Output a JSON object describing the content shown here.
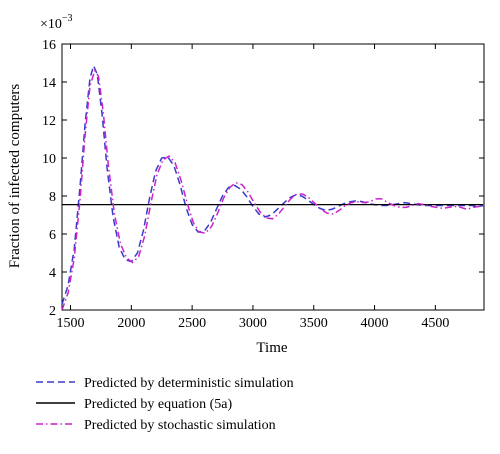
{
  "chart_data": {
    "type": "line",
    "xlabel": "Time",
    "ylabel": "Fraction of infected computers",
    "y_multiplier": "×10",
    "y_multiplier_exp": "−3",
    "xlim": [
      1430,
      4900
    ],
    "ylim": [
      2,
      16
    ],
    "x_ticks": [
      1500,
      2000,
      2500,
      3000,
      3500,
      4000,
      4500
    ],
    "y_ticks": [
      2,
      4,
      6,
      8,
      10,
      12,
      14,
      16
    ],
    "grid": false,
    "legend_position": "bottom",
    "series": [
      {
        "name": "Predicted by deterministic simulation",
        "color": "#3a3acc",
        "style": "dashed",
        "x": [
          1430,
          1480,
          1530,
          1580,
          1620,
          1660,
          1690,
          1720,
          1760,
          1800,
          1850,
          1900,
          1950,
          2000,
          2050,
          2100,
          2150,
          2200,
          2250,
          2300,
          2350,
          2400,
          2450,
          2500,
          2550,
          2600,
          2650,
          2700,
          2750,
          2800,
          2850,
          2900,
          2950,
          3000,
          3050,
          3100,
          3150,
          3200,
          3250,
          3300,
          3350,
          3400,
          3450,
          3500,
          3550,
          3600,
          3650,
          3700,
          3750,
          3800,
          3850,
          3900,
          3950,
          4000,
          4050,
          4100,
          4150,
          4200,
          4250,
          4300,
          4350,
          4400,
          4450,
          4500,
          4550,
          4600,
          4650,
          4700,
          4750,
          4800,
          4850,
          4900
        ],
        "y": [
          2.3,
          3.3,
          5.2,
          8.6,
          11.8,
          14.2,
          14.85,
          14.4,
          12.3,
          9.5,
          6.9,
          5.3,
          4.65,
          4.55,
          5.0,
          6.2,
          7.9,
          9.3,
          10.0,
          10.05,
          9.6,
          8.6,
          7.4,
          6.5,
          6.1,
          6.15,
          6.6,
          7.3,
          8.0,
          8.45,
          8.55,
          8.35,
          7.95,
          7.45,
          7.05,
          6.9,
          7.0,
          7.3,
          7.6,
          7.9,
          8.05,
          8.0,
          7.8,
          7.55,
          7.35,
          7.25,
          7.3,
          7.45,
          7.6,
          7.7,
          7.75,
          7.7,
          7.6,
          7.55,
          7.5,
          7.5,
          7.55,
          7.6,
          7.65,
          7.6,
          7.55,
          7.5,
          7.5,
          7.5,
          7.5,
          7.5,
          7.5,
          7.5,
          7.5,
          7.5,
          7.45,
          7.5
        ]
      },
      {
        "name": "Predicted by equation (5a)",
        "color": "#000000",
        "style": "solid",
        "x": [
          1430,
          4900
        ],
        "y": [
          7.55,
          7.55
        ]
      },
      {
        "name": "Predicted by stochastic simulation",
        "color": "#cc22cc",
        "style": "dashdot",
        "x": [
          1430,
          1480,
          1530,
          1580,
          1620,
          1660,
          1700,
          1730,
          1770,
          1810,
          1860,
          1910,
          1960,
          2010,
          2060,
          2110,
          2160,
          2210,
          2260,
          2310,
          2360,
          2410,
          2460,
          2510,
          2560,
          2610,
          2660,
          2710,
          2760,
          2810,
          2860,
          2910,
          2960,
          3010,
          3060,
          3110,
          3160,
          3210,
          3260,
          3310,
          3360,
          3410,
          3460,
          3510,
          3560,
          3610,
          3660,
          3710,
          3760,
          3810,
          3860,
          3910,
          3960,
          4010,
          4060,
          4110,
          4160,
          4210,
          4260,
          4310,
          4360,
          4410,
          4460,
          4510,
          4560,
          4610,
          4660,
          4710,
          4760,
          4810,
          4860,
          4900
        ],
        "y": [
          2.0,
          2.9,
          4.7,
          7.9,
          11.2,
          13.8,
          14.6,
          14.3,
          12.4,
          9.7,
          7.1,
          5.5,
          4.75,
          4.5,
          4.8,
          5.9,
          7.6,
          9.1,
          9.9,
          10.1,
          9.75,
          8.8,
          7.6,
          6.6,
          6.1,
          6.05,
          6.4,
          7.1,
          7.9,
          8.45,
          8.7,
          8.6,
          8.2,
          7.65,
          7.15,
          6.85,
          6.8,
          7.05,
          7.45,
          7.85,
          8.1,
          8.1,
          7.9,
          7.6,
          7.3,
          7.1,
          7.05,
          7.25,
          7.5,
          7.65,
          7.7,
          7.65,
          7.7,
          7.85,
          7.85,
          7.65,
          7.5,
          7.4,
          7.4,
          7.5,
          7.6,
          7.55,
          7.45,
          7.4,
          7.35,
          7.4,
          7.45,
          7.4,
          7.3,
          7.4,
          7.45,
          7.55
        ]
      }
    ]
  }
}
